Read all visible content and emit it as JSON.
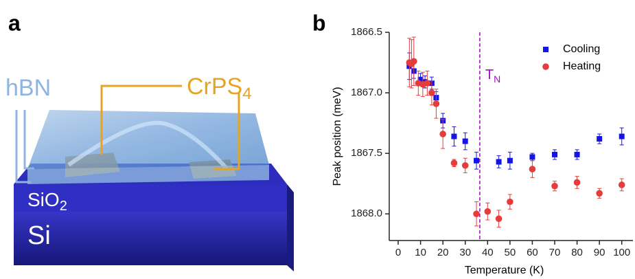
{
  "panel_labels": [
    "a",
    "b"
  ],
  "schematic": {
    "hbn": "hBN",
    "crps": {
      "text": "CrPS",
      "sub": "4"
    },
    "sio2": {
      "text": "SiO",
      "sub": "2"
    },
    "si": "Si"
  },
  "chart_data": {
    "type": "scatter",
    "xlabel": "Temperature (K)",
    "ylabel": "Peak position (meV)",
    "xlim": [
      -4,
      105
    ],
    "xticks": [
      0,
      10,
      20,
      30,
      40,
      50,
      60,
      70,
      80,
      90,
      100
    ],
    "ylim": [
      1866.5,
      1868.22
    ],
    "y_inverted": true,
    "yticks": [
      1866.5,
      {
        "value": 1867,
        "label": "1867.0"
      },
      1867.5,
      {
        "value": 1868,
        "label": "1868.0"
      }
    ],
    "legend": "upper right",
    "vline": {
      "x": 36.5,
      "color": "#b000d0",
      "label": "T",
      "label_sub": "N"
    },
    "series": [
      {
        "name": "Cooling",
        "color": "#1414e6",
        "marker": "square",
        "x": [
          5,
          7,
          10,
          12,
          15,
          17,
          20,
          25,
          30,
          35,
          45,
          50,
          60,
          70,
          80,
          90,
          100
        ],
        "values": [
          1866.78,
          1866.82,
          1866.89,
          1866.91,
          1866.92,
          1867.04,
          1867.23,
          1867.36,
          1867.4,
          1867.56,
          1867.57,
          1867.56,
          1867.53,
          1867.51,
          1867.51,
          1867.38,
          1867.36
        ],
        "errors": [
          0.11,
          0.06,
          0.05,
          0.05,
          0.05,
          0.05,
          0.06,
          0.08,
          0.07,
          0.07,
          0.05,
          0.07,
          0.03,
          0.04,
          0.04,
          0.04,
          0.07
        ]
      },
      {
        "name": "Heating",
        "color": "#e63c3c",
        "marker": "circle",
        "x": [
          5,
          6,
          7,
          9,
          11,
          13,
          15,
          17,
          20,
          25,
          30,
          35,
          40,
          45,
          50,
          60,
          70,
          80,
          90,
          100
        ],
        "values": [
          1866.75,
          1866.76,
          1866.74,
          1866.92,
          1866.93,
          1866.92,
          1867.0,
          1867.09,
          1867.34,
          1867.58,
          1867.6,
          1868.0,
          1867.98,
          1868.04,
          1867.9,
          1867.63,
          1867.77,
          1867.74,
          1867.83,
          1867.76
        ],
        "errors": [
          0.2,
          0.2,
          0.2,
          0.1,
          0.1,
          0.1,
          0.1,
          0.12,
          0.12,
          0.03,
          0.06,
          0.1,
          0.07,
          0.07,
          0.06,
          0.07,
          0.04,
          0.05,
          0.04,
          0.05
        ]
      }
    ]
  }
}
